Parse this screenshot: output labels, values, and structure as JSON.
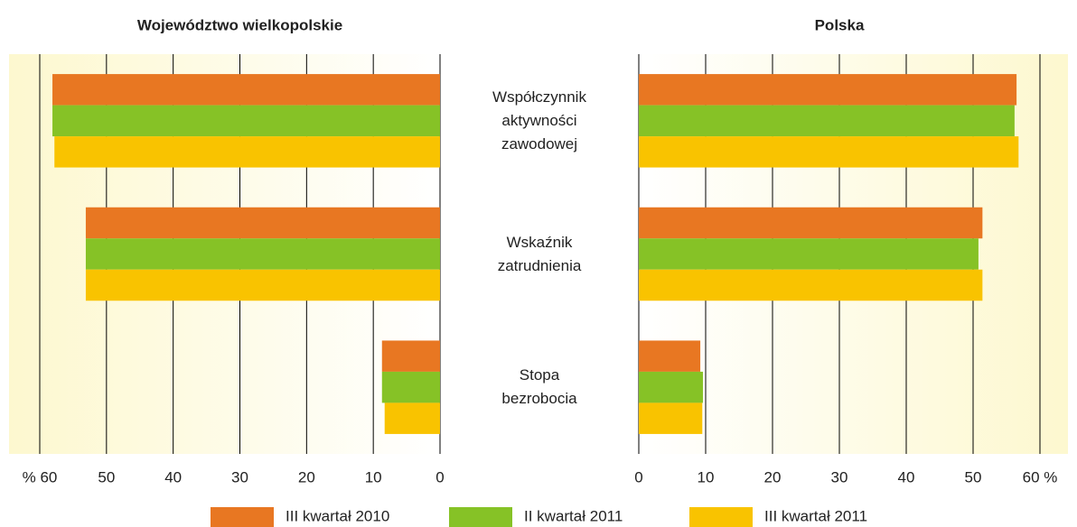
{
  "chart_data": [
    {
      "type": "bar",
      "orientation": "horizontal",
      "title": "Województwo wielkopolskie",
      "categories": [
        "Współczynnik aktywności zawodowej",
        "Wskaźnik zatrudnienia",
        "Stopa bezrobocia"
      ],
      "series": [
        {
          "name": "III kwartał 2010",
          "color": "#e87722",
          "values": [
            58.1,
            53.1,
            8.7
          ]
        },
        {
          "name": "II kwartał 2011",
          "color": "#86c226",
          "values": [
            58.1,
            53.1,
            8.7
          ]
        },
        {
          "name": "III kwartał 2011",
          "color": "#f9c300",
          "values": [
            57.8,
            53.1,
            8.3
          ]
        }
      ],
      "xlim": [
        60,
        0
      ],
      "xticks": [
        {
          "value": 60,
          "label": "% 60"
        },
        50,
        40,
        30,
        20,
        10,
        0
      ],
      "grid": true
    },
    {
      "type": "bar",
      "orientation": "horizontal",
      "title": "Polska",
      "series": [
        {
          "color": "#e87722",
          "values": [
            56.5,
            51.4,
            9.2
          ]
        },
        {
          "color": "#86c226",
          "values": [
            56.2,
            50.8,
            9.6
          ]
        },
        {
          "color": "#f9c300",
          "values": [
            56.8,
            51.4,
            9.5
          ]
        }
      ],
      "xlim": [
        0,
        60
      ],
      "xticks": [
        0,
        10,
        20,
        30,
        40,
        50,
        {
          "value": 60,
          "label": "60 %"
        }
      ],
      "grid": true
    }
  ]
}
